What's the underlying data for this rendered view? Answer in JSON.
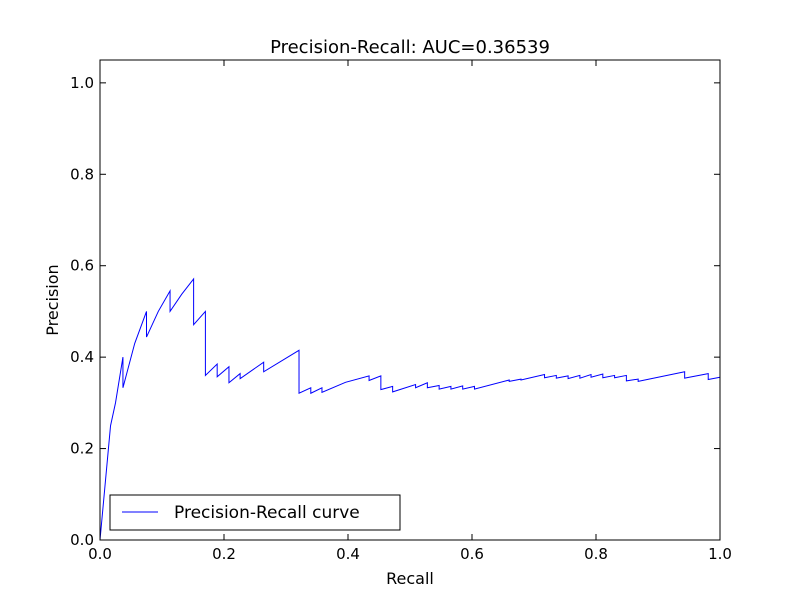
{
  "chart_data": {
    "type": "line",
    "title": "Precision-Recall: AUC=0.36539",
    "xlabel": "Recall",
    "ylabel": "Precision",
    "xlim": [
      0.0,
      1.0
    ],
    "ylim": [
      0.0,
      1.05
    ],
    "xticks": [
      "0.0",
      "0.2",
      "0.4",
      "0.6",
      "0.8",
      "1.0"
    ],
    "yticks": [
      "0.0",
      "0.2",
      "0.4",
      "0.6",
      "0.8",
      "1.0"
    ],
    "grid": false,
    "legend": {
      "position": "lower-left",
      "entries": [
        "Precision-Recall curve"
      ]
    },
    "series": [
      {
        "name": "Precision-Recall curve",
        "color": "#0000ff",
        "x": [
          0.0,
          0.017,
          0.025,
          0.037,
          0.037,
          0.056,
          0.075,
          0.075,
          0.094,
          0.113,
          0.113,
          0.132,
          0.151,
          0.151,
          0.17,
          0.17,
          0.189,
          0.189,
          0.208,
          0.208,
          0.226,
          0.226,
          0.264,
          0.264,
          0.321,
          0.321,
          0.34,
          0.34,
          0.358,
          0.358,
          0.396,
          0.434,
          0.434,
          0.453,
          0.453,
          0.472,
          0.472,
          0.509,
          0.509,
          0.528,
          0.528,
          0.547,
          0.547,
          0.566,
          0.566,
          0.585,
          0.585,
          0.604,
          0.604,
          0.66,
          0.66,
          0.679,
          0.679,
          0.717,
          0.717,
          0.736,
          0.736,
          0.755,
          0.755,
          0.774,
          0.774,
          0.792,
          0.792,
          0.811,
          0.811,
          0.83,
          0.83,
          0.849,
          0.849,
          0.868,
          0.868,
          0.943,
          0.943,
          0.981,
          0.981,
          1.0
        ],
        "y": [
          0.0,
          0.25,
          0.3,
          0.4,
          0.333,
          0.43,
          0.5,
          0.444,
          0.5,
          0.545,
          0.5,
          0.538,
          0.571,
          0.471,
          0.5,
          0.36,
          0.385,
          0.357,
          0.379,
          0.344,
          0.364,
          0.353,
          0.389,
          0.368,
          0.415,
          0.321,
          0.333,
          0.321,
          0.333,
          0.323,
          0.345,
          0.359,
          0.349,
          0.359,
          0.329,
          0.336,
          0.324,
          0.34,
          0.333,
          0.344,
          0.333,
          0.338,
          0.33,
          0.336,
          0.33,
          0.337,
          0.33,
          0.336,
          0.33,
          0.35,
          0.347,
          0.352,
          0.35,
          0.362,
          0.355,
          0.36,
          0.354,
          0.359,
          0.353,
          0.36,
          0.354,
          0.362,
          0.356,
          0.363,
          0.355,
          0.36,
          0.355,
          0.36,
          0.348,
          0.352,
          0.347,
          0.368,
          0.354,
          0.364,
          0.351,
          0.356
        ]
      }
    ]
  }
}
